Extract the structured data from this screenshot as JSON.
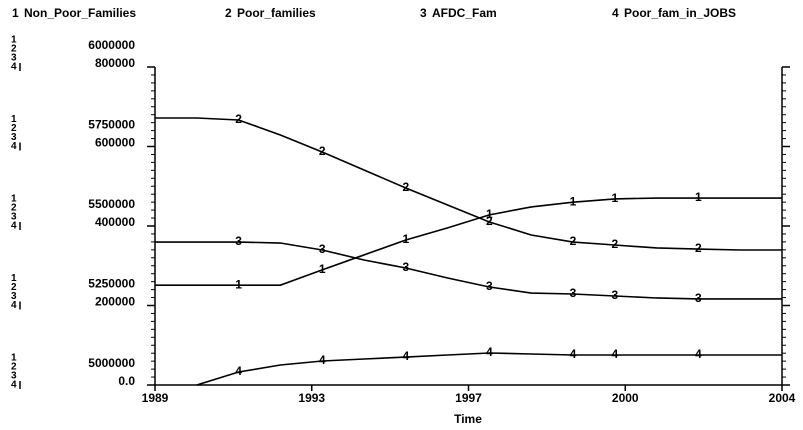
{
  "chart_data": {
    "type": "line",
    "x_label": "Time",
    "x": [
      1989,
      1990,
      1991,
      1992,
      1993,
      1994,
      1995,
      1996,
      1997,
      1998,
      1999,
      2000,
      2001,
      2002,
      2003,
      2004
    ],
    "xlim": [
      1989,
      2004
    ],
    "xticks": [
      1989,
      {
        "value": 1992.75,
        "label": "1993"
      },
      {
        "value": 1996.5,
        "label": "1997"
      },
      {
        "value": 2000.25,
        "label": "2000"
      },
      2004
    ],
    "ylim": [
      5000000,
      6000000
    ],
    "yticks": [
      5000000,
      5250000,
      5500000,
      5750000,
      6000000
    ],
    "y2lim": [
      0,
      800000
    ],
    "y2ticks": [
      {
        "value": 0,
        "label": "0.0"
      },
      200000,
      400000,
      600000,
      800000
    ],
    "series": [
      {
        "number": "1",
        "name": "Non_Poor_Families",
        "color": "#000000",
        "values": [
          5314000,
          5314000,
          5314000,
          5314000,
          5362000,
          5409000,
          5456000,
          5494000,
          5535000,
          5560000,
          5575000,
          5585000,
          5588000,
          5588000,
          5588000,
          5588000
        ]
      },
      {
        "number": "2",
        "name": "Poor_families",
        "color": "#000000",
        "axis": "y2",
        "values": [
          671700,
          671700,
          666700,
          628900,
          586200,
          540900,
          495600,
          452800,
          410100,
          377400,
          359700,
          352200,
          344700,
          342100,
          339600,
          339600
        ]
      },
      {
        "number": "3",
        "name": "AFDC_Fam",
        "color": "#000000",
        "axis": "y2",
        "values": [
          359700,
          359700,
          359700,
          357200,
          339600,
          314500,
          294300,
          269200,
          246500,
          231400,
          228900,
          223900,
          218900,
          216400,
          216400,
          216400
        ]
      },
      {
        "number": "4",
        "name": "Poor_fam_in_JOBS",
        "color": "#000000",
        "axis": "y2",
        "values": [
          null,
          0,
          32700,
          50300,
          60400,
          65400,
          70400,
          75500,
          80500,
          78000,
          75500,
          75500,
          75500,
          75500,
          75500,
          75500
        ]
      }
    ]
  }
}
